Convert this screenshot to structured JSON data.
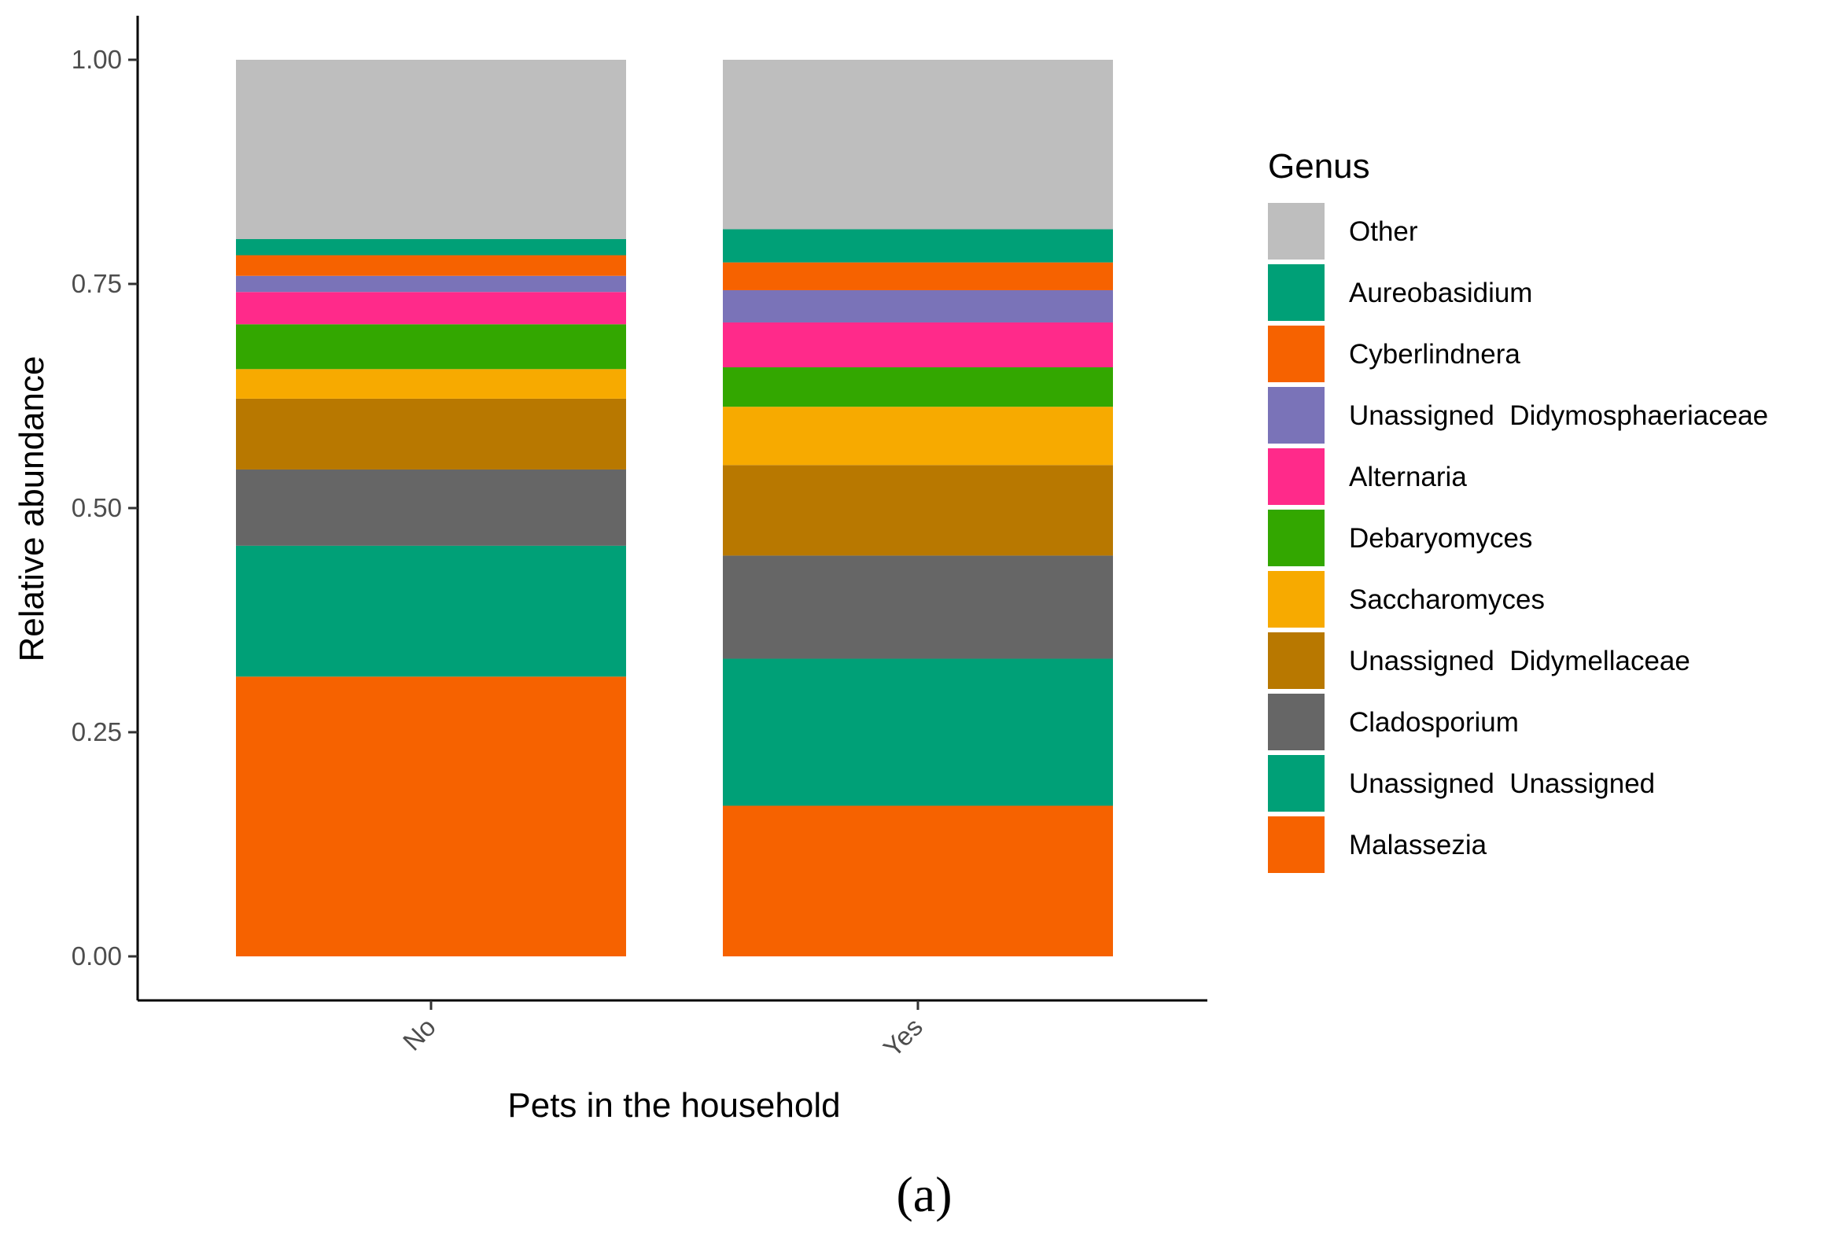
{
  "chart_data": {
    "type": "bar",
    "stacked": true,
    "categories": [
      "No",
      "Yes"
    ],
    "xlabel": "Pets in the household",
    "ylabel": "Relative abundance",
    "ylim": [
      0,
      1
    ],
    "yticks": [
      "0.00",
      "0.25",
      "0.50",
      "0.75",
      "1.00"
    ],
    "legend_title": "Genus",
    "legend_position": "right",
    "grid": false,
    "series": [
      {
        "name": "Malassezia",
        "color": "#F66200",
        "values": [
          0.312,
          0.168
        ]
      },
      {
        "name": "Unassigned  Unassigned",
        "color": "#00A077",
        "values": [
          0.146,
          0.164
        ]
      },
      {
        "name": "Cladosporium",
        "color": "#666666",
        "values": [
          0.085,
          0.115
        ]
      },
      {
        "name": "Unassigned  Didymellaceae",
        "color": "#B87800",
        "values": [
          0.079,
          0.101
        ]
      },
      {
        "name": "Saccharomyces",
        "color": "#F7AA00",
        "values": [
          0.033,
          0.065
        ]
      },
      {
        "name": "Debaryomyces",
        "color": "#33A700",
        "values": [
          0.05,
          0.044
        ]
      },
      {
        "name": "Alternaria",
        "color": "#FF2A8A",
        "values": [
          0.036,
          0.05
        ]
      },
      {
        "name": "Unassigned  Didymosphaeriaceae",
        "color": "#7A73B8",
        "values": [
          0.018,
          0.036
        ]
      },
      {
        "name": "Cyberlindnera",
        "color": "#F66200",
        "values": [
          0.023,
          0.031
        ]
      },
      {
        "name": "Aureobasidium",
        "color": "#00A077",
        "values": [
          0.018,
          0.037
        ]
      },
      {
        "name": "Other",
        "color": "#BEBEBE",
        "values": [
          0.2,
          0.189
        ]
      }
    ]
  },
  "panel_label": "(a)"
}
